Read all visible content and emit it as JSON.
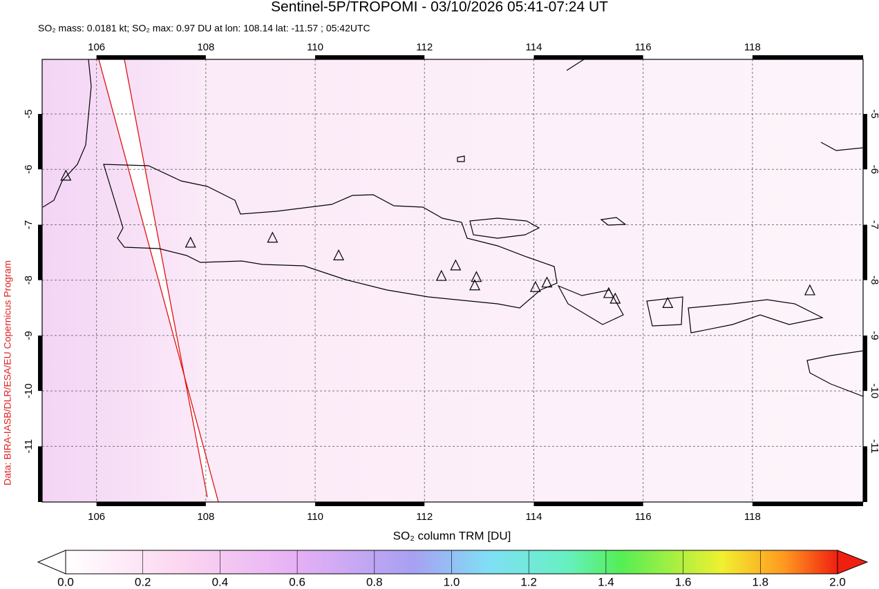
{
  "header": {
    "title": "Sentinel-5P/TROPOMI - 03/10/2026 05:41-07:24 UT",
    "subtitle": "SO₂ mass: 0.0181 kt; SO₂ max: 0.97 DU at lon: 108.14 lat: -11.57 ; 05:42UTC"
  },
  "credit": "Data: BIRA-IASB/DLR/ESA/EU Copernicus Program",
  "map": {
    "xlim": [
      104.93,
      120.1
    ],
    "ylim": [
      -12.08,
      -3.94
    ],
    "xticks": [
      106,
      108,
      110,
      112,
      114,
      116,
      118
    ],
    "yticks": [
      -5,
      -6,
      -7,
      -8,
      -9,
      -10,
      -11
    ],
    "volcano_lon": [
      105.44,
      107.72,
      109.22,
      110.43,
      112.31,
      112.57,
      112.95,
      112.92,
      114.03,
      114.24,
      115.37,
      115.49,
      116.45,
      119.05
    ],
    "volcano_lat": [
      -6.12,
      -7.33,
      -7.24,
      -7.56,
      -7.93,
      -7.74,
      -7.95,
      -8.1,
      -8.13,
      -8.05,
      -8.24,
      -8.34,
      -8.42,
      -8.19
    ]
  },
  "colorbar": {
    "label": "SO₂ column TRM [DU]",
    "lim": [
      0,
      2
    ],
    "ticks": [
      {
        "value": 0,
        "label": "0.0"
      },
      {
        "value": 0.2,
        "label": "0.2"
      },
      {
        "value": 0.4,
        "label": "0.4"
      },
      {
        "value": 0.6,
        "label": "0.6"
      },
      {
        "value": 0.8,
        "label": "0.8"
      },
      {
        "value": 1,
        "label": "1.0"
      },
      {
        "value": 1.2,
        "label": "1.2"
      },
      {
        "value": 1.4,
        "label": "1.4"
      },
      {
        "value": 1.6,
        "label": "1.6"
      },
      {
        "value": 1.8,
        "label": "1.8"
      },
      {
        "value": 2,
        "label": "2.0"
      }
    ]
  }
}
